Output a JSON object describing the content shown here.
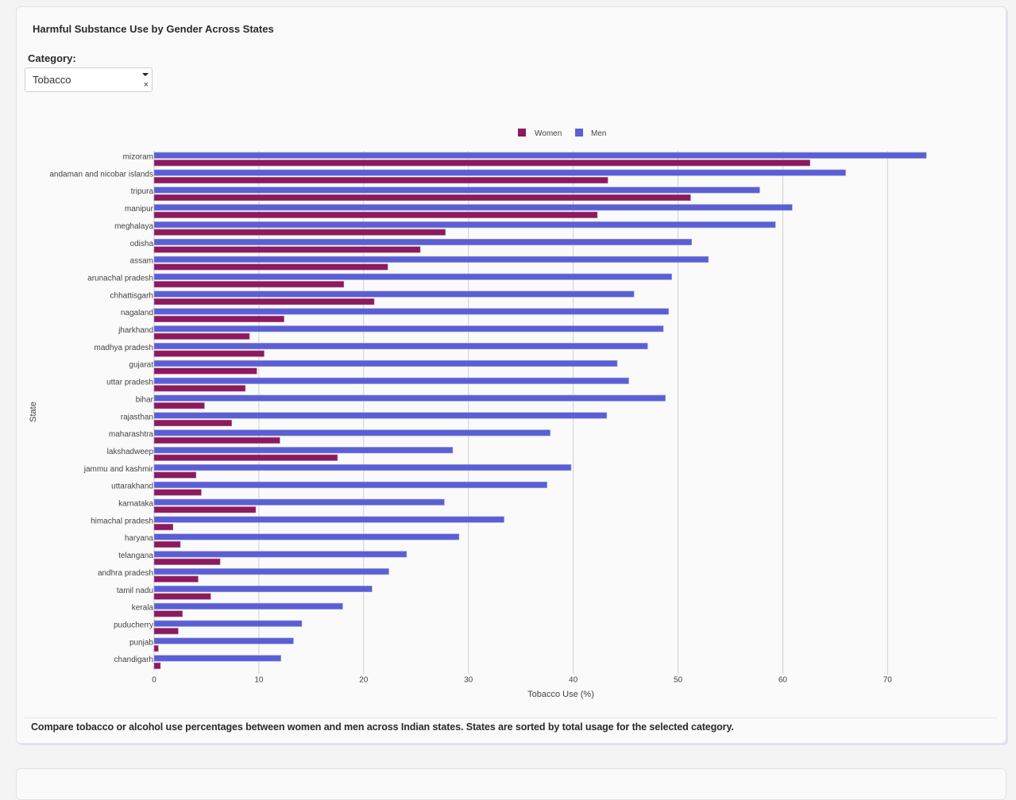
{
  "card": {
    "title": "Harmful Substance Use by Gender Across States",
    "category_label": "Category:",
    "category_select": {
      "value": "Tobacco",
      "clear_symbol": "×"
    },
    "description": "Compare tobacco or alcohol use percentages between women and men across Indian states. States are sorted by total usage for the selected category."
  },
  "colors": {
    "women": "#8b1a5e",
    "men": "#5b5fd4",
    "grid": "#d0d0d0"
  },
  "chart_data": {
    "type": "bar",
    "orientation": "horizontal",
    "title": "",
    "xlabel": "Tobacco Use (%)",
    "ylabel": "State",
    "xlim": [
      0,
      75
    ],
    "xticks": [
      0,
      10,
      20,
      30,
      40,
      50,
      60,
      70
    ],
    "grid": true,
    "legend_position": "top-center",
    "categories": [
      "mizoram",
      "andaman and nicobar islands",
      "tripura",
      "manipur",
      "meghalaya",
      "odisha",
      "assam",
      "arunachal pradesh",
      "chhattisgarh",
      "nagaland",
      "jharkhand",
      "madhya pradesh",
      "gujarat",
      "uttar pradesh",
      "bihar",
      "rajasthan",
      "maharashtra",
      "lakshadweep",
      "jammu and kashmir",
      "uttarakhand",
      "karnataka",
      "himachal pradesh",
      "haryana",
      "telangana",
      "andhra pradesh",
      "tamil nadu",
      "kerala",
      "puducherry",
      "punjab",
      "chandigarh"
    ],
    "series": [
      {
        "name": "Women",
        "values": [
          62.6,
          43.3,
          51.2,
          42.3,
          27.8,
          25.4,
          22.3,
          18.1,
          21.0,
          12.4,
          9.1,
          10.5,
          9.8,
          8.7,
          4.8,
          7.4,
          12.0,
          17.5,
          4.0,
          4.5,
          9.7,
          1.8,
          2.5,
          6.3,
          4.2,
          5.4,
          2.7,
          2.3,
          0.4,
          0.6
        ]
      },
      {
        "name": "Men",
        "values": [
          73.7,
          66.0,
          57.8,
          60.9,
          59.3,
          51.3,
          52.9,
          49.4,
          45.8,
          49.1,
          48.6,
          47.1,
          44.2,
          45.3,
          48.8,
          43.2,
          37.8,
          28.5,
          39.8,
          37.5,
          27.7,
          33.4,
          29.1,
          24.1,
          22.4,
          20.8,
          18.0,
          14.1,
          13.3,
          12.1
        ]
      }
    ]
  }
}
